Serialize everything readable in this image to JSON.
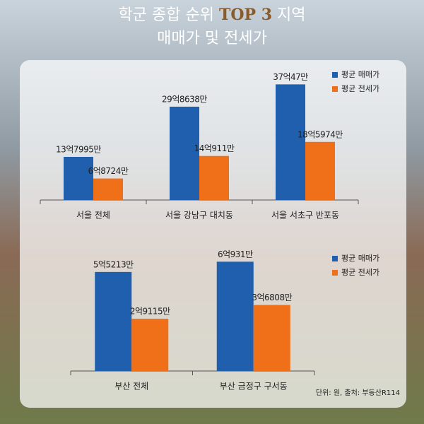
{
  "header": {
    "title_start": "학군 종합 순위",
    "title_highlight": "TOP 3",
    "title_end": "지역",
    "subtitle": "매매가 및 전세가"
  },
  "chart_data": [
    {
      "type": "bar",
      "categories": [
        "서울 전체",
        "서울 강남구 대치동",
        "서울 서초구 반포동"
      ],
      "series": [
        {
          "name": "평균 매매가",
          "color": "#1f5fad",
          "values": [
            1379950000,
            2986380000,
            3700470000
          ],
          "value_labels": [
            "13억7995만",
            "29억8638만",
            "37억47만"
          ]
        },
        {
          "name": "평균 전세가",
          "color": "#f07019",
          "values": [
            687240000,
            1409110000,
            1859740000
          ],
          "value_labels": [
            "6억8724만",
            "14억911만",
            "18억5974만"
          ]
        }
      ],
      "ylim": [
        0,
        3800000000
      ],
      "legend": "upper right"
    },
    {
      "type": "bar",
      "categories": [
        "부산 전체",
        "부산 금정구 구서동"
      ],
      "series": [
        {
          "name": "평균 매매가",
          "color": "#1f5fad",
          "values": [
            552130000,
            609310000
          ],
          "value_labels": [
            "5억5213만",
            "6억931만"
          ]
        },
        {
          "name": "평균 전세가",
          "color": "#f07019",
          "values": [
            291150000,
            368080000
          ],
          "value_labels": [
            "2억9115만",
            "3억6808만"
          ]
        }
      ],
      "ylim": [
        0,
        650000000
      ],
      "legend": "upper right"
    }
  ],
  "note": "단위: 원, 출처: 부동산R114"
}
